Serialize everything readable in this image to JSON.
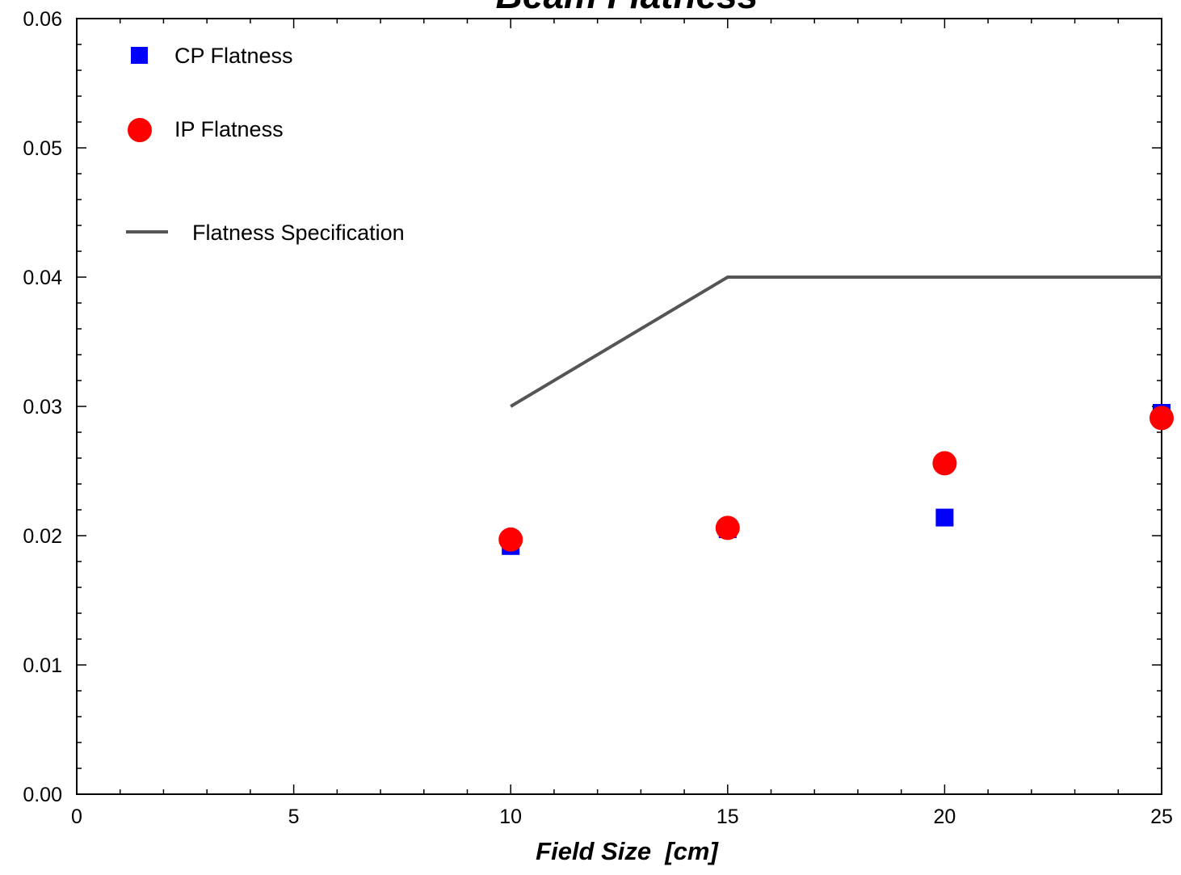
{
  "chart_data": {
    "type": "scatter",
    "title": "Beam Flatness",
    "xlabel": "Field Size  [cm]",
    "ylabel": "",
    "xlim": [
      0,
      25
    ],
    "ylim": [
      0,
      0.06
    ],
    "x_ticks": [
      "0",
      "5",
      "10",
      "15",
      "20",
      "25"
    ],
    "y_ticks": [
      "0.00",
      "0.01",
      "0.02",
      "0.03",
      "0.04",
      "0.05",
      "0.06"
    ],
    "grid": false,
    "legend_position": "top-left",
    "series": [
      {
        "name": "CP Flatness",
        "marker": "square",
        "color": "#0000ff",
        "x": [
          10,
          15,
          20,
          25
        ],
        "y": [
          0.0192,
          0.0205,
          0.0214,
          0.0295
        ]
      },
      {
        "name": "IP Flatness",
        "marker": "circle",
        "color": "#ff0000",
        "x": [
          10,
          15,
          20,
          25
        ],
        "y": [
          0.0197,
          0.0206,
          0.0256,
          0.0291
        ]
      },
      {
        "name": "Flatness Specification",
        "marker": "line",
        "color": "#555555",
        "x": [
          10,
          15,
          20,
          25
        ],
        "y": [
          0.03,
          0.04,
          0.04,
          0.04
        ]
      }
    ]
  }
}
